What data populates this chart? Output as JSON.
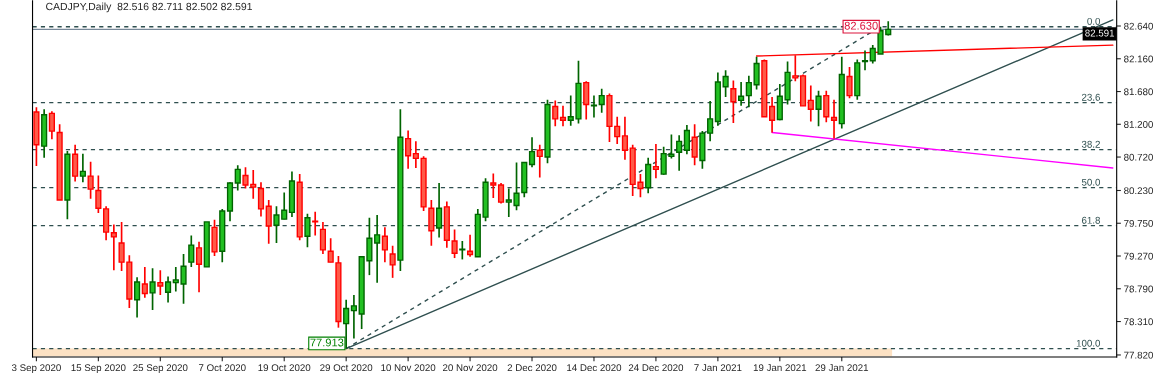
{
  "chart_data": {
    "type": "candlestick",
    "title": "CADJPY,Daily  82.516 82.711 82.502 82.591",
    "categories": [
      "3 Sep 2020",
      null,
      null,
      null,
      null,
      null,
      null,
      null,
      "15 Sep 2020",
      null,
      null,
      null,
      null,
      null,
      null,
      null,
      "25 Sep 2020",
      null,
      null,
      null,
      null,
      null,
      null,
      null,
      "7 Oct 2020",
      null,
      null,
      null,
      null,
      null,
      null,
      null,
      "19 Oct 2020",
      null,
      null,
      null,
      null,
      null,
      null,
      null,
      "29 Oct 2020",
      null,
      null,
      null,
      null,
      null,
      null,
      null,
      "10 Nov 2020",
      null,
      null,
      null,
      null,
      null,
      null,
      null,
      "20 Nov 2020",
      null,
      null,
      null,
      null,
      null,
      null,
      null,
      "2 Dec 2020",
      null,
      null,
      null,
      null,
      null,
      null,
      null,
      "14 Dec 2020",
      null,
      null,
      null,
      null,
      null,
      null,
      null,
      "24 Dec 2020",
      null,
      null,
      null,
      null,
      null,
      null,
      null,
      "7 Jan 2021",
      null,
      null,
      null,
      null,
      null,
      null,
      null,
      "19 Jan 2021",
      null,
      null,
      null,
      null,
      null,
      null,
      null,
      "29 Jan 2021",
      null,
      null,
      null,
      null,
      null,
      null,
      null,
      null,
      null,
      null,
      null,
      null,
      null,
      null,
      null,
      null,
      null,
      null,
      null,
      null,
      null,
      null,
      null,
      null,
      null,
      null,
      null,
      null,
      null,
      null,
      null,
      null,
      null,
      null,
      null
    ],
    "ohlc": [
      [
        81.38,
        81.45,
        80.59,
        80.9
      ],
      [
        80.88,
        81.42,
        80.71,
        81.34
      ],
      [
        81.36,
        81.39,
        80.98,
        81.1
      ],
      [
        81.08,
        81.2,
        80.09,
        80.09
      ],
      [
        80.09,
        80.81,
        79.81,
        80.76
      ],
      [
        80.76,
        80.9,
        80.36,
        80.44
      ],
      [
        80.44,
        80.77,
        80.35,
        80.51
      ],
      [
        80.44,
        80.65,
        80.11,
        80.25
      ],
      [
        80.23,
        80.45,
        79.9,
        79.97
      ],
      [
        79.96,
        80.0,
        79.5,
        79.62
      ],
      [
        79.61,
        79.73,
        79.06,
        79.55
      ],
      [
        79.46,
        79.77,
        79.05,
        79.18
      ],
      [
        79.18,
        79.28,
        78.51,
        78.64
      ],
      [
        78.63,
        78.96,
        78.37,
        78.89
      ],
      [
        78.86,
        79.11,
        78.66,
        78.72
      ],
      [
        78.73,
        79.09,
        78.48,
        78.89
      ],
      [
        78.88,
        79.06,
        78.7,
        78.83
      ],
      [
        78.74,
        78.97,
        78.59,
        78.89
      ],
      [
        78.88,
        79.11,
        78.75,
        78.92
      ],
      [
        78.86,
        79.3,
        78.57,
        79.12
      ],
      [
        79.18,
        79.57,
        79.11,
        79.43
      ],
      [
        79.39,
        79.48,
        78.74,
        79.15
      ],
      [
        79.11,
        79.77,
        79.11,
        79.77
      ],
      [
        79.69,
        79.8,
        79.27,
        79.33
      ],
      [
        79.34,
        79.96,
        79.18,
        79.93
      ],
      [
        79.93,
        80.35,
        79.78,
        80.34
      ],
      [
        80.34,
        80.6,
        80.23,
        80.54
      ],
      [
        80.45,
        80.57,
        80.26,
        80.31
      ],
      [
        80.32,
        80.53,
        80.11,
        80.28
      ],
      [
        80.26,
        80.35,
        79.85,
        79.96
      ],
      [
        80.0,
        80.09,
        79.45,
        79.71
      ],
      [
        79.72,
        80.0,
        79.46,
        79.87
      ],
      [
        79.81,
        80.2,
        79.81,
        79.94
      ],
      [
        79.91,
        80.51,
        79.84,
        80.37
      ],
      [
        80.35,
        80.47,
        79.5,
        79.55
      ],
      [
        79.56,
        79.89,
        79.4,
        79.83
      ],
      [
        79.78,
        79.92,
        79.57,
        79.77
      ],
      [
        79.66,
        79.77,
        79.3,
        79.36
      ],
      [
        79.34,
        79.53,
        79.18,
        79.18
      ],
      [
        79.17,
        79.27,
        78.22,
        78.31
      ],
      [
        78.28,
        78.63,
        77.913,
        78.5
      ],
      [
        78.47,
        78.7,
        78.06,
        78.54
      ],
      [
        78.42,
        79.26,
        78.2,
        79.26
      ],
      [
        79.2,
        79.83,
        78.99,
        79.53
      ],
      [
        79.46,
        79.87,
        78.88,
        79.58
      ],
      [
        79.56,
        79.69,
        79.18,
        79.36
      ],
      [
        79.3,
        79.42,
        78.95,
        79.14
      ],
      [
        79.21,
        81.42,
        79.05,
        81.01
      ],
      [
        80.99,
        81.11,
        80.55,
        80.74
      ],
      [
        80.77,
        80.95,
        80.56,
        80.7
      ],
      [
        80.7,
        80.73,
        79.93,
        79.99
      ],
      [
        79.97,
        80.09,
        79.42,
        79.64
      ],
      [
        79.68,
        80.34,
        79.54,
        79.97
      ],
      [
        79.99,
        80.07,
        79.39,
        79.5
      ],
      [
        79.49,
        79.66,
        79.24,
        79.31
      ],
      [
        79.36,
        79.49,
        79.22,
        79.37
      ],
      [
        79.34,
        79.58,
        79.26,
        79.29
      ],
      [
        79.26,
        79.96,
        79.26,
        79.88
      ],
      [
        79.84,
        80.41,
        79.78,
        80.35
      ],
      [
        80.34,
        80.48,
        80.12,
        80.31
      ],
      [
        80.31,
        80.34,
        80.04,
        80.06
      ],
      [
        80.06,
        80.26,
        79.84,
        80.09
      ],
      [
        80.01,
        80.64,
        79.94,
        80.19
      ],
      [
        80.2,
        80.64,
        80.13,
        80.64
      ],
      [
        80.61,
        81.01,
        80.57,
        80.8
      ],
      [
        80.82,
        80.9,
        80.42,
        80.73
      ],
      [
        80.72,
        81.56,
        80.63,
        81.49
      ],
      [
        81.46,
        81.55,
        81.17,
        81.28
      ],
      [
        81.3,
        81.47,
        81.17,
        81.26
      ],
      [
        81.26,
        81.62,
        81.18,
        81.31
      ],
      [
        81.28,
        82.13,
        81.21,
        81.8
      ],
      [
        81.81,
        81.83,
        81.27,
        81.49
      ],
      [
        81.47,
        81.62,
        81.3,
        81.48
      ],
      [
        81.49,
        81.72,
        81.37,
        81.62
      ],
      [
        81.62,
        81.65,
        80.94,
        81.17
      ],
      [
        81.17,
        81.31,
        80.91,
        81.02
      ],
      [
        81.03,
        81.31,
        80.68,
        80.82
      ],
      [
        80.85,
        80.9,
        80.15,
        80.32
      ],
      [
        80.35,
        80.47,
        80.13,
        80.26
      ],
      [
        80.27,
        80.71,
        80.19,
        80.61
      ],
      [
        80.58,
        80.91,
        80.41,
        80.54
      ],
      [
        80.47,
        80.87,
        80.46,
        80.77
      ],
      [
        80.73,
        81.05,
        80.7,
        80.76
      ],
      [
        80.79,
        81.04,
        80.52,
        80.95
      ],
      [
        80.82,
        81.19,
        80.76,
        81.11
      ],
      [
        81.01,
        81.2,
        80.6,
        80.72
      ],
      [
        80.67,
        81.1,
        80.55,
        81.07
      ],
      [
        81.07,
        81.54,
        80.95,
        81.28
      ],
      [
        81.24,
        81.96,
        81.18,
        81.82
      ],
      [
        81.75,
        81.99,
        81.6,
        81.9
      ],
      [
        81.72,
        81.84,
        81.22,
        81.53
      ],
      [
        81.55,
        81.82,
        81.47,
        81.61
      ],
      [
        81.62,
        81.91,
        81.45,
        81.81
      ],
      [
        81.78,
        82.19,
        81.71,
        82.09
      ],
      [
        82.13,
        82.15,
        81.31,
        81.31
      ],
      [
        81.46,
        81.6,
        81.08,
        81.26
      ],
      [
        81.27,
        81.79,
        81.26,
        81.61
      ],
      [
        81.56,
        82.12,
        81.49,
        81.96
      ],
      [
        81.91,
        82.21,
        81.83,
        81.88
      ],
      [
        81.91,
        81.93,
        81.47,
        81.47
      ],
      [
        81.55,
        81.77,
        81.24,
        81.42
      ],
      [
        81.42,
        81.69,
        81.17,
        81.61
      ],
      [
        81.62,
        81.69,
        81.23,
        81.31
      ],
      [
        81.3,
        81.56,
        80.99,
        81.26
      ],
      [
        81.21,
        82.19,
        81.14,
        81.93
      ],
      [
        81.9,
        82.04,
        81.58,
        81.62
      ],
      [
        81.62,
        82.15,
        81.56,
        82.1
      ],
      [
        82.12,
        82.28,
        81.99,
        82.13
      ],
      [
        82.13,
        82.36,
        82.09,
        82.31
      ],
      [
        82.23,
        82.63,
        82.23,
        82.57
      ],
      [
        82.516,
        82.711,
        82.502,
        82.591
      ],
      null,
      null,
      null,
      null,
      null,
      null,
      null,
      null,
      null,
      null,
      null,
      null,
      null,
      null,
      null,
      null,
      null,
      null,
      null,
      null,
      null,
      null,
      null,
      null,
      null,
      null,
      null,
      null,
      null
    ],
    "series": [
      {
        "type": "line",
        "color": "#2f4f4f",
        "line_style": "dashed",
        "values": [
          null,
          null,
          null,
          null,
          null,
          null,
          null,
          null,
          null,
          null,
          null,
          null,
          null,
          null,
          null,
          null,
          null,
          null,
          null,
          null,
          null,
          null,
          null,
          null,
          null,
          null,
          null,
          null,
          null,
          null,
          null,
          null,
          null,
          null,
          null,
          null,
          null,
          null,
          null,
          null,
          77.913,
          null,
          null,
          null,
          null,
          null,
          null,
          null,
          null,
          null,
          null,
          null,
          null,
          null,
          null,
          null,
          null,
          null,
          null,
          null,
          null,
          null,
          null,
          null,
          null,
          null,
          null,
          null,
          null,
          null,
          null,
          null,
          null,
          null,
          null,
          null,
          null,
          null,
          null,
          null,
          null,
          null,
          null,
          null,
          null,
          null,
          null,
          null,
          null,
          null,
          null,
          null,
          null,
          null,
          null,
          null,
          null,
          null,
          null,
          null,
          null,
          null,
          null,
          null,
          null,
          null,
          null,
          null,
          null,
          82.63,
          null,
          null,
          null,
          null,
          null,
          null,
          null,
          null,
          null,
          null,
          null,
          null,
          null,
          null,
          null,
          null,
          null,
          null,
          null,
          null,
          null,
          null,
          null,
          null,
          null,
          null,
          null,
          null,
          null,
          null
        ],
        "value_labels": [
          null,
          null,
          null,
          null,
          null,
          null,
          null,
          null,
          null,
          null,
          null,
          null,
          null,
          null,
          null,
          null,
          null,
          null,
          null,
          null,
          null,
          null,
          null,
          null,
          null,
          null,
          null,
          null,
          null,
          null,
          null,
          null,
          null,
          null,
          null,
          null,
          null,
          null,
          null,
          null,
          "77.913",
          null,
          null,
          null,
          null,
          null,
          null,
          null,
          null,
          null,
          null,
          null,
          null,
          null,
          null,
          null,
          null,
          null,
          null,
          null,
          null,
          null,
          null,
          null,
          null,
          null,
          null,
          null,
          null,
          null,
          null,
          null,
          null,
          null,
          null,
          null,
          null,
          null,
          null,
          null,
          null,
          null,
          null,
          null,
          null,
          null,
          null,
          null,
          null,
          null,
          null,
          null,
          null,
          null,
          null,
          null,
          null,
          null,
          null,
          null,
          null,
          null,
          null,
          null,
          null,
          null,
          null,
          null,
          null,
          "82.630",
          null,
          null,
          null,
          null,
          null,
          null,
          null,
          null,
          null,
          null,
          null,
          null,
          null,
          null,
          null,
          null,
          null,
          null,
          null,
          null,
          null,
          null,
          null,
          null,
          null,
          null,
          null,
          null,
          null,
          null
        ]
      },
      {
        "type": "line",
        "color": "#2f4f4f",
        "line_style": "solid",
        "values": [
          null,
          null,
          null,
          null,
          null,
          null,
          null,
          null,
          null,
          null,
          null,
          null,
          null,
          null,
          null,
          null,
          null,
          null,
          null,
          null,
          null,
          null,
          null,
          null,
          null,
          null,
          null,
          null,
          null,
          null,
          null,
          null,
          null,
          null,
          null,
          null,
          null,
          null,
          null,
          null,
          77.913,
          null,
          null,
          null,
          null,
          null,
          null,
          null,
          null,
          null,
          null,
          null,
          null,
          null,
          null,
          null,
          null,
          null,
          null,
          null,
          null,
          null,
          null,
          null,
          null,
          null,
          null,
          null,
          null,
          null,
          null,
          null,
          null,
          null,
          null,
          null,
          null,
          null,
          null,
          null,
          null,
          null,
          null,
          null,
          null,
          null,
          null,
          null,
          null,
          null,
          null,
          null,
          null,
          null,
          null,
          null,
          null,
          null,
          null,
          null,
          null,
          null,
          null,
          null,
          null,
          null,
          null,
          null,
          null,
          null,
          null,
          null,
          null,
          null,
          null,
          null,
          null,
          null,
          null,
          null,
          null,
          null,
          null,
          null,
          null,
          null,
          null,
          null,
          null,
          null,
          null,
          null,
          null,
          null,
          null,
          null,
          null,
          null,
          null,
          82.73
        ]
      },
      {
        "type": "line",
        "color": "#ff0000",
        "line_style": "solid",
        "values": [
          null,
          null,
          null,
          null,
          null,
          null,
          null,
          null,
          null,
          null,
          null,
          null,
          null,
          null,
          null,
          null,
          null,
          null,
          null,
          null,
          null,
          null,
          null,
          null,
          null,
          null,
          null,
          null,
          null,
          null,
          null,
          null,
          null,
          null,
          null,
          null,
          null,
          null,
          null,
          null,
          null,
          null,
          null,
          null,
          null,
          null,
          null,
          null,
          null,
          null,
          null,
          null,
          null,
          null,
          null,
          null,
          null,
          null,
          null,
          null,
          null,
          null,
          null,
          null,
          null,
          null,
          null,
          null,
          null,
          null,
          null,
          null,
          null,
          null,
          null,
          null,
          null,
          null,
          null,
          null,
          null,
          null,
          null,
          null,
          null,
          null,
          null,
          null,
          null,
          null,
          null,
          null,
          null,
          82.2,
          null,
          null,
          null,
          null,
          null,
          null,
          null,
          null,
          null,
          null,
          null,
          null,
          null,
          null,
          null,
          null,
          null,
          null,
          null,
          null,
          null,
          null,
          null,
          null,
          null,
          null,
          null,
          null,
          null,
          null,
          null,
          null,
          null,
          null,
          null,
          null,
          null,
          null,
          null,
          null,
          null,
          null,
          null,
          null,
          null,
          82.36
        ]
      },
      {
        "type": "line",
        "color": "#ff00ff",
        "line_style": "solid",
        "values": [
          null,
          null,
          null,
          null,
          null,
          null,
          null,
          null,
          null,
          null,
          null,
          null,
          null,
          null,
          null,
          null,
          null,
          null,
          null,
          null,
          null,
          null,
          null,
          null,
          null,
          null,
          null,
          null,
          null,
          null,
          null,
          null,
          null,
          null,
          null,
          null,
          null,
          null,
          null,
          null,
          null,
          null,
          null,
          null,
          null,
          null,
          null,
          null,
          null,
          null,
          null,
          null,
          null,
          null,
          null,
          null,
          null,
          null,
          null,
          null,
          null,
          null,
          null,
          null,
          null,
          null,
          null,
          null,
          null,
          null,
          null,
          null,
          null,
          null,
          null,
          null,
          null,
          null,
          null,
          null,
          null,
          null,
          null,
          null,
          null,
          null,
          null,
          null,
          null,
          null,
          null,
          null,
          null,
          null,
          null,
          81.08,
          null,
          null,
          null,
          null,
          null,
          null,
          null,
          null,
          null,
          null,
          null,
          null,
          null,
          null,
          null,
          null,
          null,
          null,
          null,
          null,
          null,
          null,
          null,
          null,
          null,
          null,
          null,
          null,
          null,
          null,
          null,
          null,
          null,
          null,
          null,
          null,
          null,
          null,
          null,
          null,
          null,
          null,
          null,
          80.56
        ]
      }
    ],
    "ref_lines": [
      {
        "axis": "y",
        "value": 82.63,
        "color": "#2f4f4f",
        "line_style": "dashed"
      },
      {
        "axis": "y",
        "value": 81.517,
        "color": "#2f4f4f",
        "line_style": "dashed"
      },
      {
        "axis": "y",
        "value": 80.828,
        "color": "#2f4f4f",
        "line_style": "dashed"
      },
      {
        "axis": "y",
        "value": 80.272,
        "color": "#2f4f4f",
        "line_style": "dashed"
      },
      {
        "axis": "y",
        "value": 79.715,
        "color": "#2f4f4f",
        "line_style": "dashed"
      },
      {
        "axis": "y",
        "value": 77.913,
        "color": "#2f4f4f",
        "line_style": "dashed"
      },
      {
        "axis": "y",
        "value": 82.591,
        "label": "82.591",
        "color": "#778899",
        "line_style": "solid"
      }
    ],
    "bands": [
      {
        "axis": "y",
        "from": 77.8,
        "to": 77.913,
        "color": "#fde2c4"
      }
    ],
    "annotations": [
      {
        "text": "0.0",
        "y": 82.63
      },
      {
        "text": "23.6",
        "y": 81.517
      },
      {
        "text": "38.2",
        "y": 80.828
      },
      {
        "text": "50.0",
        "y": 80.272
      },
      {
        "text": "61.8",
        "y": 79.715
      },
      {
        "text": "100.0",
        "y": 77.913
      }
    ],
    "ylim": [
      77.79,
      83.01
    ],
    "yticks": [
      {
        "value": 77.82,
        "label": "77.820"
      },
      {
        "value": 78.31,
        "label": "78.310"
      },
      {
        "value": 78.79,
        "label": "78.790"
      },
      {
        "value": 79.27,
        "label": "79.270"
      },
      {
        "value": 79.75,
        "label": "79.750"
      },
      {
        "value": 80.23,
        "label": "80.230"
      },
      {
        "value": 80.72,
        "label": "80.720"
      },
      {
        "value": 81.2,
        "label": "81.200"
      },
      {
        "value": 81.68,
        "label": "81.680"
      },
      {
        "value": 82.16,
        "label": "82.160"
      },
      {
        "value": 82.64,
        "label": "82.640"
      }
    ]
  }
}
